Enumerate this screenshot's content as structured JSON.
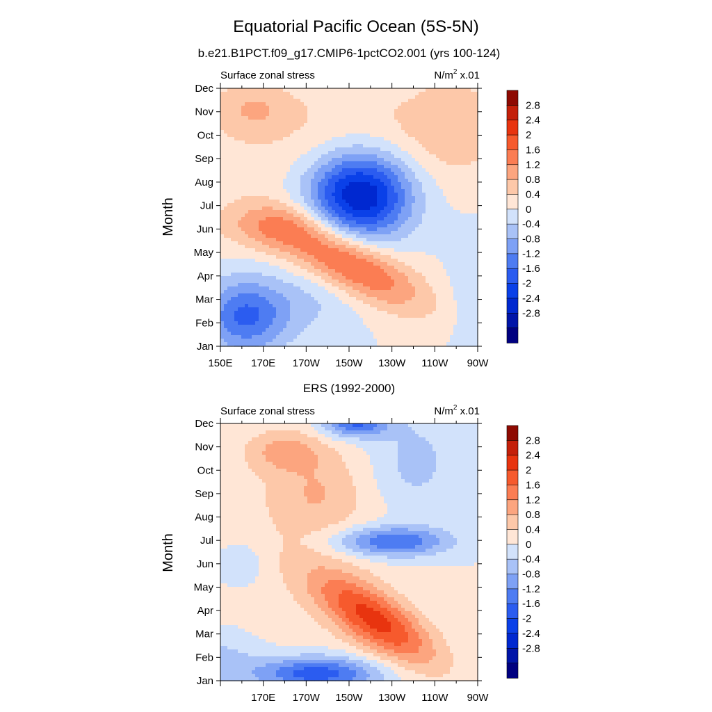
{
  "figure": {
    "title": "Equatorial Pacific Ocean (5S-5N)"
  },
  "colors": [
    "#000080",
    "#0014a8",
    "#0028d0",
    "#0a40e8",
    "#2b5cf0",
    "#4e7cf2",
    "#7ea1f5",
    "#a9c2f7",
    "#d2e2fb",
    "#ffe6d6",
    "#fdc8a9",
    "#fca57f",
    "#fb7d53",
    "#f65a2d",
    "#e8340f",
    "#c4200a",
    "#8e0a02"
  ],
  "chart_data": [
    {
      "type": "heatmap",
      "subtitle": "b.e21.B1PCT.f09_g17.CMIP6-1pctCO2.001 (yrs 100-124)",
      "left_label": "Surface zonal stress",
      "right_label": "N/m",
      "right_label_sup": "2",
      "right_label_suffix": " x.01",
      "ylabel": "Month",
      "xlabel": "",
      "x_ticks": [
        "150E",
        "170E",
        "170W",
        "150W",
        "130W",
        "110W",
        "90W"
      ],
      "y_ticks": [
        "Jan",
        "Feb",
        "Mar",
        "Apr",
        "May",
        "Jun",
        "Jul",
        "Aug",
        "Sep",
        "Oct",
        "Nov",
        "Dec"
      ],
      "x_range": [
        150,
        270
      ],
      "y_range": [
        1,
        12
      ],
      "colorbar_levels": [
        "2.8",
        "2.4",
        "2",
        "1.6",
        "1.2",
        "0.8",
        "0.4",
        "0",
        "-0.4",
        "-0.8",
        "-1.2",
        "-1.6",
        "-2",
        "-2.4",
        "-2.8"
      ],
      "features": [
        {
          "x": 215,
          "y": 7.45,
          "sx": 17,
          "sy": 1.3,
          "amp": -3.0
        },
        {
          "x": 210,
          "y": 4.5,
          "sx": 24,
          "sy": 0.9,
          "amp": 1.8,
          "tilt": -0.04
        },
        {
          "x": 175,
          "y": 6.1,
          "sx": 18,
          "sy": 0.7,
          "amp": 0.85
        },
        {
          "x": 162,
          "y": 2.3,
          "sx": 14,
          "sy": 1.1,
          "amp": -1.7
        },
        {
          "x": 165,
          "y": 11.1,
          "sx": 13,
          "sy": 0.8,
          "amp": 0.6
        },
        {
          "x": 258,
          "y": 10.4,
          "sx": 18,
          "sy": 1.6,
          "amp": 0.55
        },
        {
          "x": 200,
          "y": 10.0,
          "sx": 45,
          "sy": 2.5,
          "amp": 0.4
        },
        {
          "x": 195,
          "y": 3.0,
          "sx": 15,
          "sy": 1.0,
          "amp": -0.4
        },
        {
          "x": 213,
          "y": 12.3,
          "sx": 18,
          "sy": 0.6,
          "amp": -0.35
        },
        {
          "x": 268,
          "y": 3.0,
          "sx": 8,
          "sy": 2.0,
          "amp": -0.35
        }
      ]
    },
    {
      "type": "heatmap",
      "subtitle": "ERS (1992-2000)",
      "left_label": "Surface zonal stress",
      "right_label": "N/m",
      "right_label_sup": "2",
      "right_label_suffix": " x.01",
      "ylabel": "Month",
      "xlabel": "",
      "x_ticks": [
        "170E",
        "170W",
        "150W",
        "130W",
        "110W",
        "90W"
      ],
      "y_ticks": [
        "Jan",
        "Feb",
        "Mar",
        "Apr",
        "May",
        "Jun",
        "Jul",
        "Aug",
        "Sep",
        "Oct",
        "Nov",
        "Dec"
      ],
      "x_range": [
        150,
        270
      ],
      "y_range": [
        1,
        12
      ],
      "colorbar_levels": [
        "2.8",
        "2.4",
        "2",
        "1.6",
        "1.2",
        "0.8",
        "0.4",
        "0",
        "-0.4",
        "-0.8",
        "-1.2",
        "-1.6",
        "-2",
        "-2.4",
        "-2.8"
      ],
      "features": [
        {
          "x": 222,
          "y": 3.6,
          "sx": 20,
          "sy": 0.95,
          "amp": 2.1,
          "tilt": -0.05
        },
        {
          "x": 230,
          "y": 6.95,
          "sx": 18,
          "sy": 0.45,
          "amp": -1.7
        },
        {
          "x": 195,
          "y": 1.3,
          "sx": 20,
          "sy": 0.5,
          "amp": -1.9
        },
        {
          "x": 213,
          "y": 12.05,
          "sx": 11,
          "sy": 0.45,
          "amp": -1.8
        },
        {
          "x": 240,
          "y": 10.3,
          "sx": 14,
          "sy": 1.5,
          "amp": -0.6
        },
        {
          "x": 180,
          "y": 10.8,
          "sx": 12,
          "sy": 0.6,
          "amp": 0.8
        },
        {
          "x": 195,
          "y": 9.0,
          "sx": 14,
          "sy": 1.2,
          "amp": 0.55
        },
        {
          "x": 188,
          "y": 8.0,
          "sx": 35,
          "sy": 3.5,
          "amp": 0.3
        },
        {
          "x": 160,
          "y": 6.0,
          "sx": 8,
          "sy": 0.7,
          "amp": -0.45
        },
        {
          "x": 150,
          "y": 1.8,
          "sx": 12,
          "sy": 0.8,
          "amp": -0.6
        }
      ]
    }
  ]
}
